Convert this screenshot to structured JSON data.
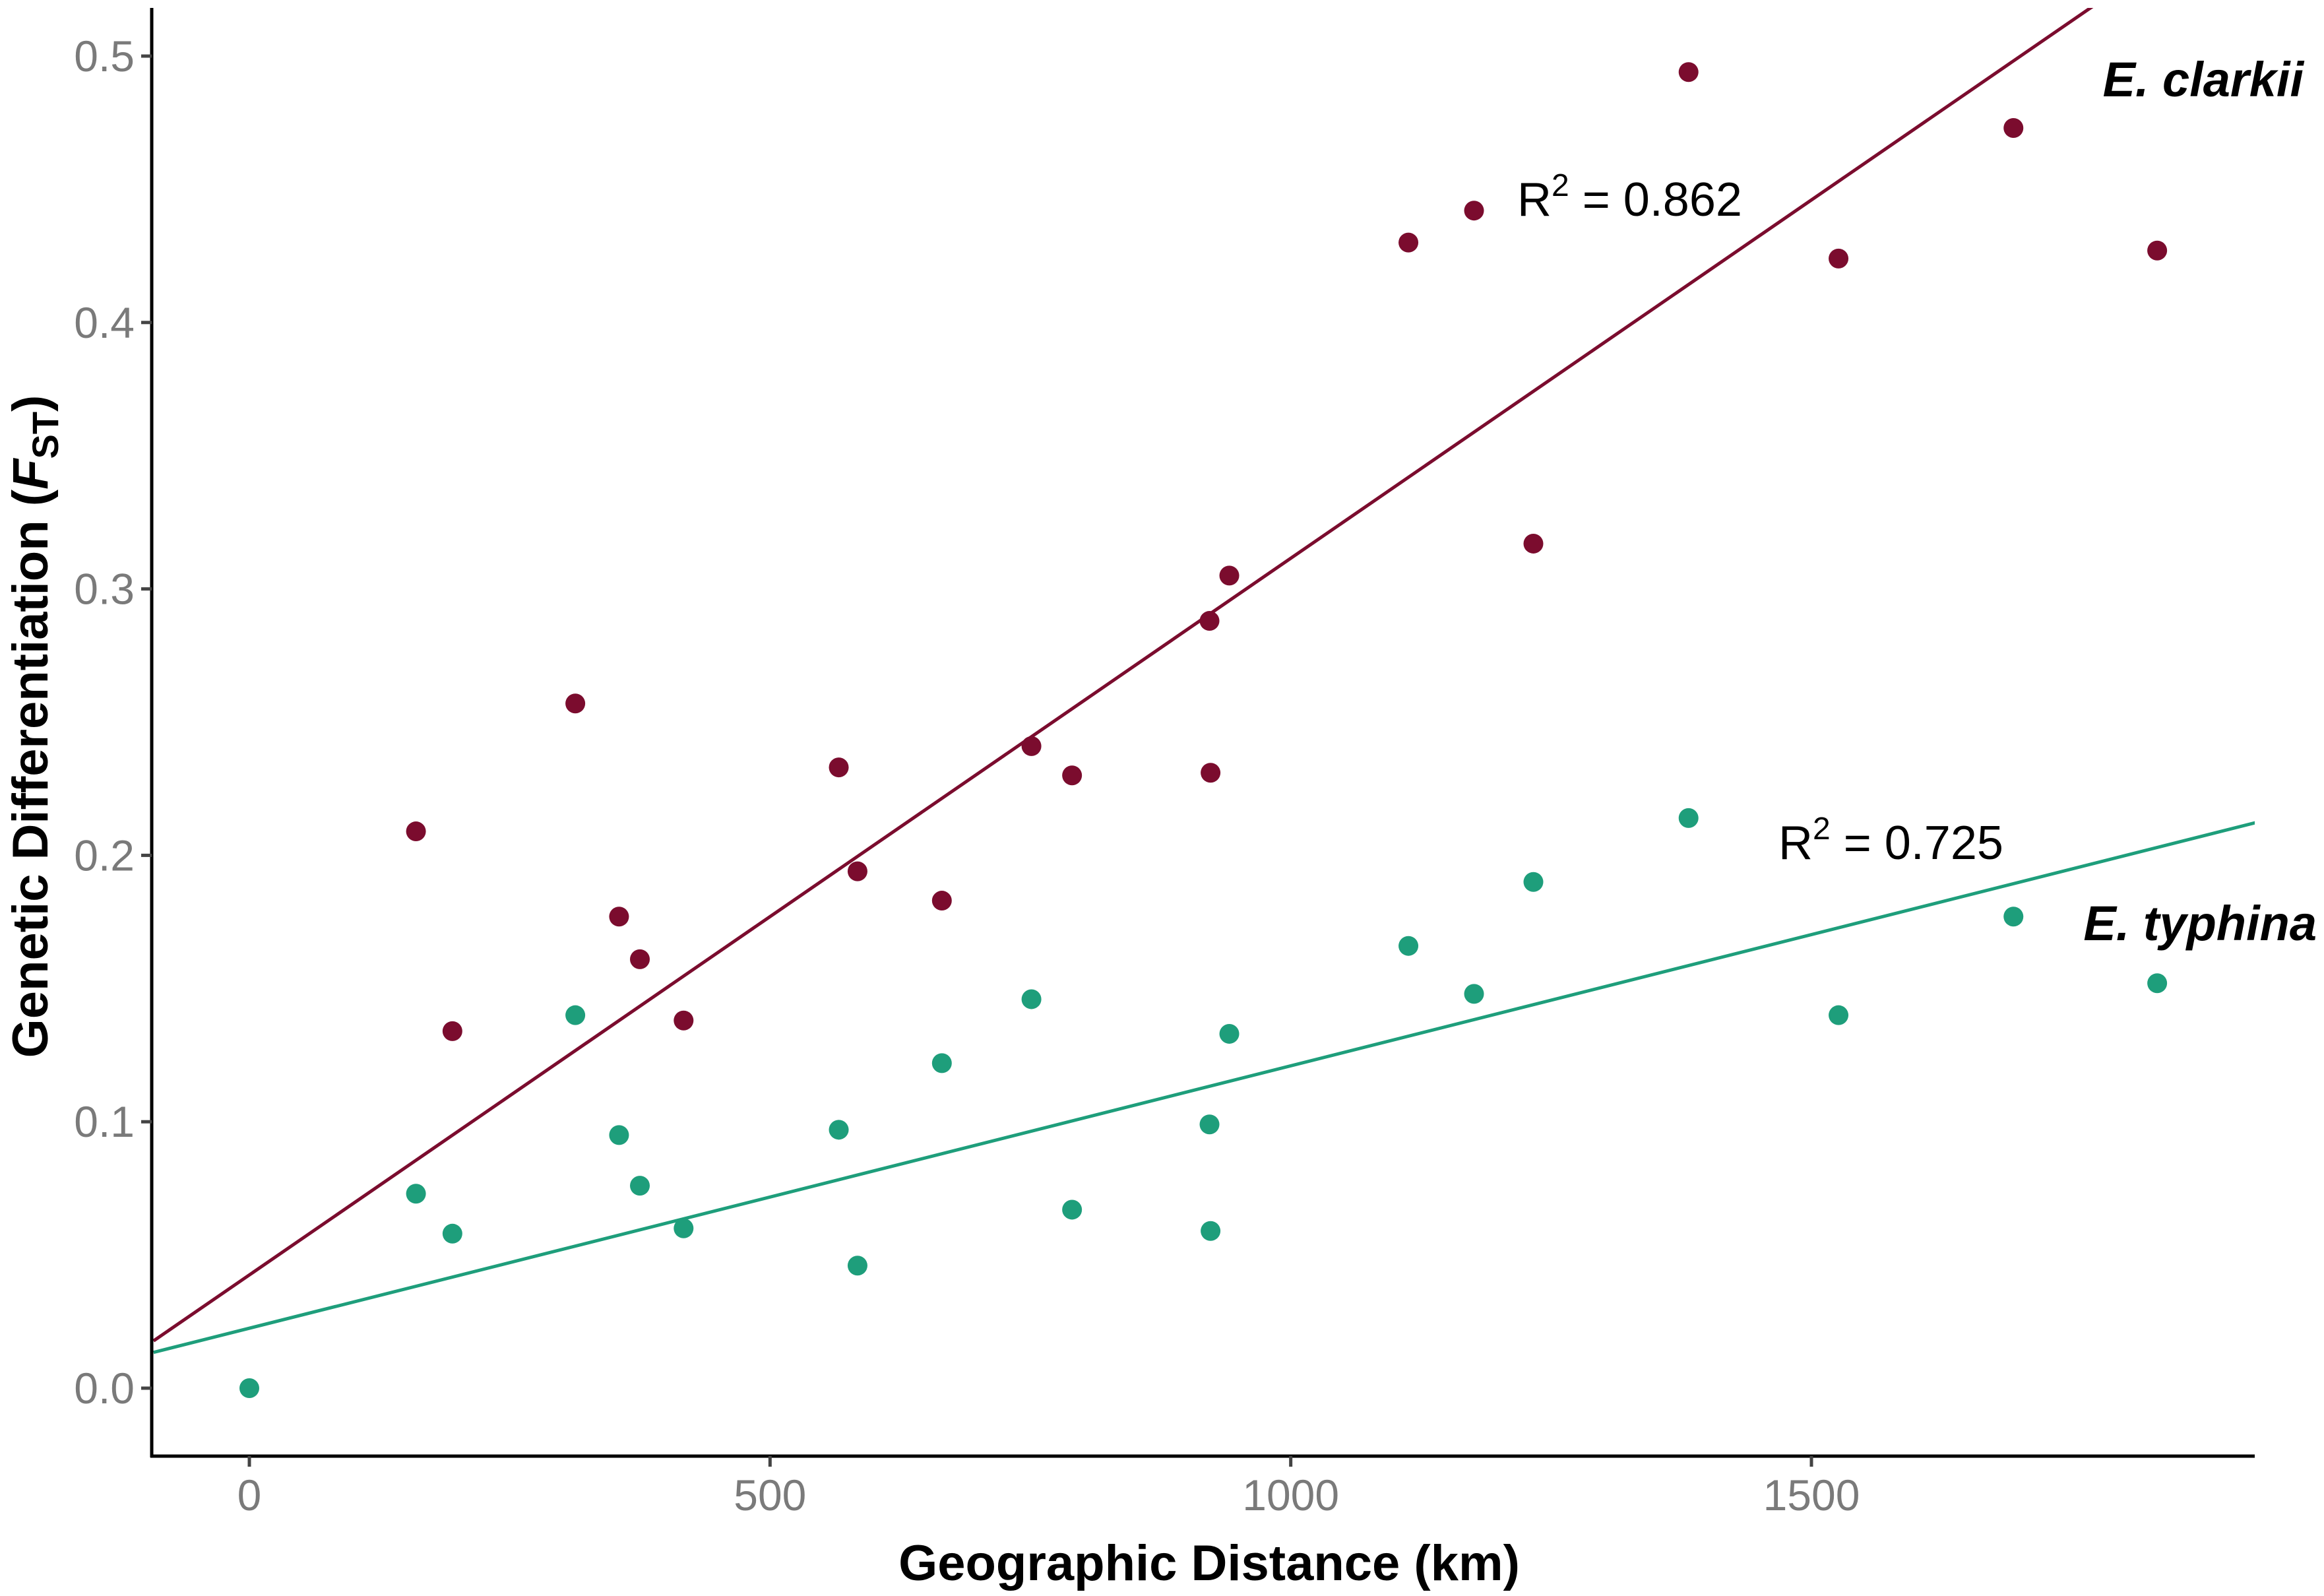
{
  "chart_data": {
    "type": "scatter",
    "xlabel": "Geographic Distance (km)",
    "ylabel": {
      "prefix": "Genetic Differentiation (",
      "symbol": "F",
      "subscript": "ST",
      "suffix": ")"
    },
    "xlim": [
      -92,
      1935
    ],
    "ylim": [
      -0.025,
      0.518
    ],
    "xticks": [
      {
        "value": 0,
        "label": "0"
      },
      {
        "value": 500,
        "label": "500"
      },
      {
        "value": 1000,
        "label": "1000"
      },
      {
        "value": 1500,
        "label": "1500"
      }
    ],
    "yticks": [
      {
        "value": 0.0,
        "label": "0.0"
      },
      {
        "value": 0.1,
        "label": "0.1"
      },
      {
        "value": 0.2,
        "label": "0.2"
      },
      {
        "value": 0.3,
        "label": "0.3"
      },
      {
        "value": 0.4,
        "label": "0.4"
      },
      {
        "value": 0.5,
        "label": "0.5"
      }
    ],
    "grid": false,
    "legend": "none",
    "series": [
      {
        "name": "E. clarkii",
        "color": "#7b0c2e",
        "points": [
          {
            "x": 160,
            "y": 0.209
          },
          {
            "x": 195,
            "y": 0.134
          },
          {
            "x": 313,
            "y": 0.257
          },
          {
            "x": 355,
            "y": 0.177
          },
          {
            "x": 375,
            "y": 0.161
          },
          {
            "x": 417,
            "y": 0.138
          },
          {
            "x": 566,
            "y": 0.233
          },
          {
            "x": 584,
            "y": 0.194
          },
          {
            "x": 665,
            "y": 0.183
          },
          {
            "x": 751,
            "y": 0.241
          },
          {
            "x": 790,
            "y": 0.23
          },
          {
            "x": 922,
            "y": 0.288
          },
          {
            "x": 923,
            "y": 0.231
          },
          {
            "x": 941,
            "y": 0.305
          },
          {
            "x": 1113,
            "y": 0.43
          },
          {
            "x": 1176,
            "y": 0.442
          },
          {
            "x": 1233,
            "y": 0.317
          },
          {
            "x": 1382,
            "y": 0.494
          },
          {
            "x": 1526,
            "y": 0.424
          },
          {
            "x": 1694,
            "y": 0.473
          },
          {
            "x": 1832,
            "y": 0.427
          }
        ],
        "fit": {
          "intercept": 0.0425,
          "slope": 0.000269
        },
        "r2_label": {
          "base": "R",
          "sup": "2",
          "rest": " = 0.862"
        }
      },
      {
        "name": "E. typhina",
        "color": "#1e9e7b",
        "points": [
          {
            "x": 0,
            "y": 0.0
          },
          {
            "x": 160,
            "y": 0.073
          },
          {
            "x": 195,
            "y": 0.058
          },
          {
            "x": 313,
            "y": 0.14
          },
          {
            "x": 355,
            "y": 0.095
          },
          {
            "x": 375,
            "y": 0.076
          },
          {
            "x": 417,
            "y": 0.06
          },
          {
            "x": 566,
            "y": 0.097
          },
          {
            "x": 584,
            "y": 0.046
          },
          {
            "x": 665,
            "y": 0.122
          },
          {
            "x": 751,
            "y": 0.146
          },
          {
            "x": 790,
            "y": 0.067
          },
          {
            "x": 922,
            "y": 0.099
          },
          {
            "x": 923,
            "y": 0.059
          },
          {
            "x": 941,
            "y": 0.133
          },
          {
            "x": 1113,
            "y": 0.166
          },
          {
            "x": 1176,
            "y": 0.148
          },
          {
            "x": 1233,
            "y": 0.19
          },
          {
            "x": 1382,
            "y": 0.214
          },
          {
            "x": 1526,
            "y": 0.14
          },
          {
            "x": 1694,
            "y": 0.177
          },
          {
            "x": 1832,
            "y": 0.152
          }
        ],
        "fit": {
          "intercept": 0.0225,
          "slope": 9.85e-05
        },
        "r2_label": {
          "base": "R",
          "sup": "2",
          "rest": " = 0.725"
        }
      }
    ]
  }
}
